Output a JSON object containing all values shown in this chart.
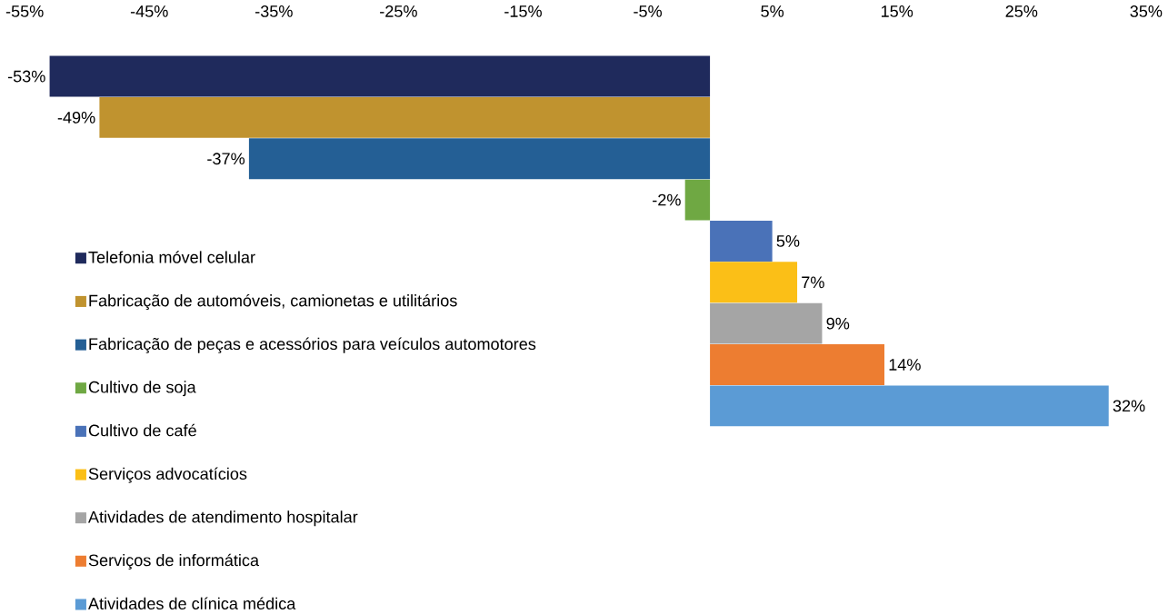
{
  "chart_data": {
    "type": "bar",
    "orientation": "horizontal",
    "categories": [
      null
    ],
    "xlim": [
      -55,
      35
    ],
    "xticks": [
      {
        "value": -55,
        "label": "-55%"
      },
      {
        "value": -45,
        "label": "-45%"
      },
      {
        "value": -35,
        "label": "-35%"
      },
      {
        "value": -25,
        "label": "-25%"
      },
      {
        "value": -15,
        "label": "-15%"
      },
      {
        "value": -5,
        "label": "-5%"
      },
      {
        "value": 5,
        "label": "5%"
      },
      {
        "value": 15,
        "label": "15%"
      },
      {
        "value": 25,
        "label": "25%"
      },
      {
        "value": 35,
        "label": "35%"
      }
    ],
    "grid": false,
    "legend": "bottom left",
    "series": [
      {
        "name": "Telefonia móvel celular",
        "color": "#1f2a5c",
        "values": [
          -53
        ],
        "value_labels": [
          "-53%"
        ]
      },
      {
        "name": "Fabricação de automóveis, camionetas e utilitários",
        "color": "#c0932f",
        "values": [
          -49
        ],
        "value_labels": [
          "-49%"
        ]
      },
      {
        "name": "Fabricação de peças e acessórios para veículos automotores",
        "color": "#245f95",
        "values": [
          -37
        ],
        "value_labels": [
          "-37%"
        ]
      },
      {
        "name": "Cultivo de soja",
        "color": "#6fa843",
        "values": [
          -2
        ],
        "value_labels": [
          "-2%"
        ]
      },
      {
        "name": "Cultivo de café",
        "color": "#4a72b8",
        "values": [
          5
        ],
        "value_labels": [
          "5%"
        ]
      },
      {
        "name": "Serviços advocatícios",
        "color": "#fbbf17",
        "values": [
          7
        ],
        "value_labels": [
          "7%"
        ]
      },
      {
        "name": "Atividades de atendimento hospitalar",
        "color": "#a5a5a5",
        "values": [
          9
        ],
        "value_labels": [
          "9%"
        ]
      },
      {
        "name": "Serviços de informática",
        "color": "#ed7d31",
        "values": [
          14
        ],
        "value_labels": [
          "14%"
        ]
      },
      {
        "name": "Atividades de clínica médica",
        "color": "#5b9bd5",
        "values": [
          32
        ],
        "value_labels": [
          "32%"
        ]
      }
    ]
  }
}
